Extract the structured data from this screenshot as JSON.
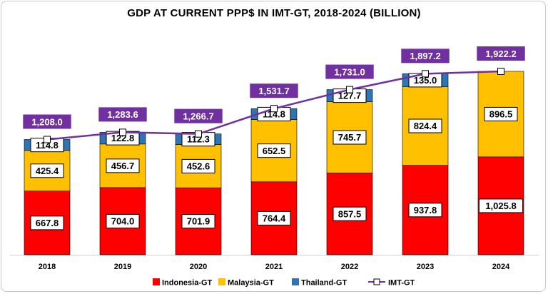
{
  "chart_data": {
    "type": "bar",
    "title": "GDP AT CURRENT PPP$ IN IMT-GT, 2018-2024 (BILLION)",
    "categories": [
      "2018",
      "2019",
      "2020",
      "2021",
      "2022",
      "2023",
      "2024"
    ],
    "stacked": true,
    "series": [
      {
        "name": "Indonesia-GT",
        "color": "#ff0000",
        "values": [
          667.8,
          704.0,
          701.9,
          764.4,
          857.5,
          937.8,
          1025.8
        ],
        "labels": [
          "667.8",
          "704.0",
          "701.9",
          "764.4",
          "857.5",
          "937.8",
          "1,025.8"
        ]
      },
      {
        "name": "Malaysia-GT",
        "color": "#ffc000",
        "values": [
          425.4,
          456.7,
          452.6,
          652.5,
          745.7,
          824.4,
          896.5
        ],
        "labels": [
          "425.4",
          "456.7",
          "452.6",
          "652.5",
          "745.7",
          "824.4",
          "896.5"
        ]
      },
      {
        "name": "Thailand-GT",
        "color": "#2e75b6",
        "values": [
          114.8,
          122.8,
          112.3,
          114.8,
          127.7,
          135.0,
          null
        ],
        "labels": [
          "114.8",
          "122.8",
          "112.3",
          "114.8",
          "127.7",
          "135.0",
          ""
        ]
      }
    ],
    "line": {
      "name": "IMT-GT",
      "color": "#7030a0",
      "values": [
        1208.0,
        1283.6,
        1266.7,
        1531.7,
        1731.0,
        1897.2,
        1922.2
      ],
      "labels": [
        "1,208.0",
        "1,283.6",
        "1,266.7",
        "1,531.7",
        "1,731.0",
        "1,897.2",
        "1,922.2"
      ]
    },
    "ylim": [
      0,
      2250
    ],
    "grid": false,
    "legend_position": "bottom"
  }
}
